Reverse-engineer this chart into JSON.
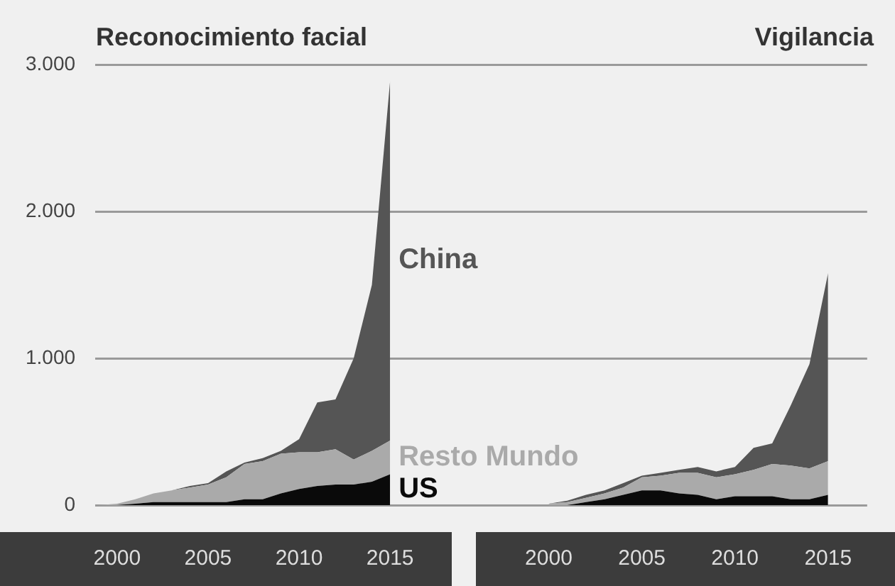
{
  "chart_data": [
    {
      "type": "area",
      "title": "Reconocimiento facial",
      "stacked": true,
      "grid": "y",
      "x": [
        1999,
        2000,
        2001,
        2002,
        2003,
        2004,
        2005,
        2006,
        2007,
        2008,
        2009,
        2010,
        2011,
        2012,
        2013,
        2014,
        2015
      ],
      "xlim": [
        1998.8,
        2018.7
      ],
      "xticks": [
        2000,
        2005,
        2010,
        2015
      ],
      "ylim": [
        0,
        3000
      ],
      "yticks": [
        {
          "value": 0,
          "label": "0"
        },
        {
          "value": 1000,
          "label": "1.000"
        },
        {
          "value": 2000,
          "label": "2.000"
        },
        {
          "value": 3000,
          "label": "3.000"
        }
      ],
      "series": [
        {
          "name": "US",
          "color": "#0a0a0a",
          "values": [
            0,
            0,
            10,
            20,
            20,
            20,
            20,
            20,
            40,
            40,
            80,
            110,
            130,
            140,
            140,
            160,
            210
          ]
        },
        {
          "name": "Resto Mundo",
          "color": "#aaaaaa",
          "values": [
            0,
            10,
            30,
            60,
            80,
            100,
            120,
            170,
            240,
            260,
            270,
            250,
            230,
            240,
            170,
            210,
            230
          ]
        },
        {
          "name": "China",
          "color": "#555555",
          "values": [
            0,
            0,
            0,
            0,
            0,
            10,
            10,
            40,
            10,
            20,
            20,
            90,
            340,
            340,
            690,
            1130,
            2450
          ]
        }
      ]
    },
    {
      "type": "area",
      "title": "Vigilancia",
      "stacked": true,
      "grid": "y",
      "tick_labels": "x",
      "x": [
        2000,
        2001,
        2002,
        2003,
        2004,
        2005,
        2006,
        2007,
        2008,
        2009,
        2010,
        2011,
        2012,
        2013,
        2014,
        2015
      ],
      "xlim": [
        1995.1,
        2017.1
      ],
      "xticks": [
        2000,
        2005,
        2010,
        2015
      ],
      "ylim": [
        0,
        3000
      ],
      "yticks": [
        0,
        1000,
        2000,
        3000
      ],
      "series": [
        {
          "color": "#0a0a0a",
          "values": [
            0,
            0,
            20,
            40,
            70,
            100,
            100,
            80,
            70,
            40,
            60,
            60,
            60,
            40,
            40,
            70
          ]
        },
        {
          "color": "#aaaaaa",
          "values": [
            10,
            20,
            30,
            40,
            50,
            90,
            100,
            140,
            150,
            150,
            150,
            180,
            220,
            230,
            210,
            230
          ]
        },
        {
          "color": "#555555",
          "values": [
            0,
            10,
            20,
            20,
            30,
            10,
            20,
            20,
            40,
            40,
            50,
            150,
            140,
            410,
            710,
            1280
          ]
        }
      ]
    }
  ]
}
